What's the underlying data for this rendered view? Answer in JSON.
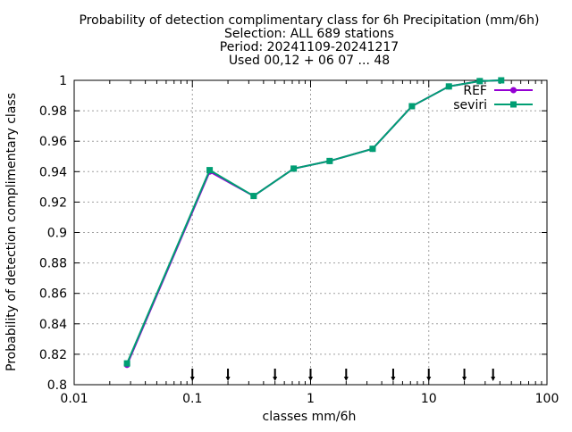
{
  "chart_data": {
    "type": "line",
    "title_lines": [
      "Probability of detection complimentary class  for 6h Precipitation (mm/6h)",
      "Selection: ALL    689 stations",
      "Period: 20241109-20241217",
      "Used 00,12 + 06 07 ... 48"
    ],
    "xlabel": "classes mm/6h",
    "ylabel": "Probability of detection complimentary class",
    "x_scale": "log",
    "xlim": [
      0.01,
      100
    ],
    "ylim": [
      0.8,
      1.0
    ],
    "x_ticks": [
      0.01,
      0.1,
      1,
      10,
      100
    ],
    "x_tick_labels": [
      "0.01",
      "0.1",
      "1",
      "10",
      "100"
    ],
    "y_ticks": [
      0.8,
      0.82,
      0.84,
      0.86,
      0.88,
      0.9,
      0.92,
      0.94,
      0.96,
      0.98,
      1.0
    ],
    "y_tick_labels": [
      "0.8",
      "0.82",
      "0.84",
      "0.86",
      "0.88",
      "0.9",
      "0.92",
      "0.94",
      "0.96",
      "0.98",
      "1"
    ],
    "grid": true,
    "legend_position": "top-right",
    "class_marks": [
      0.1,
      0.2,
      0.5,
      1,
      2,
      5,
      10,
      20,
      35
    ],
    "series": [
      {
        "name": "REF",
        "color": "#9400d3",
        "marker": "filled-circle",
        "x": [
          0.028,
          0.14,
          0.33,
          0.72,
          1.45,
          3.35,
          7.2,
          14.8,
          27,
          41
        ],
        "y": [
          0.813,
          0.94,
          0.924,
          0.942,
          0.947,
          0.955,
          0.983,
          0.996,
          0.9995,
          1.0
        ]
      },
      {
        "name": "seviri",
        "color": "#009e73",
        "marker": "filled-square",
        "x": [
          0.028,
          0.14,
          0.33,
          0.72,
          1.45,
          3.35,
          7.2,
          14.8,
          27,
          41
        ],
        "y": [
          0.814,
          0.941,
          0.924,
          0.942,
          0.947,
          0.955,
          0.983,
          0.996,
          0.9995,
          1.0
        ]
      }
    ]
  }
}
